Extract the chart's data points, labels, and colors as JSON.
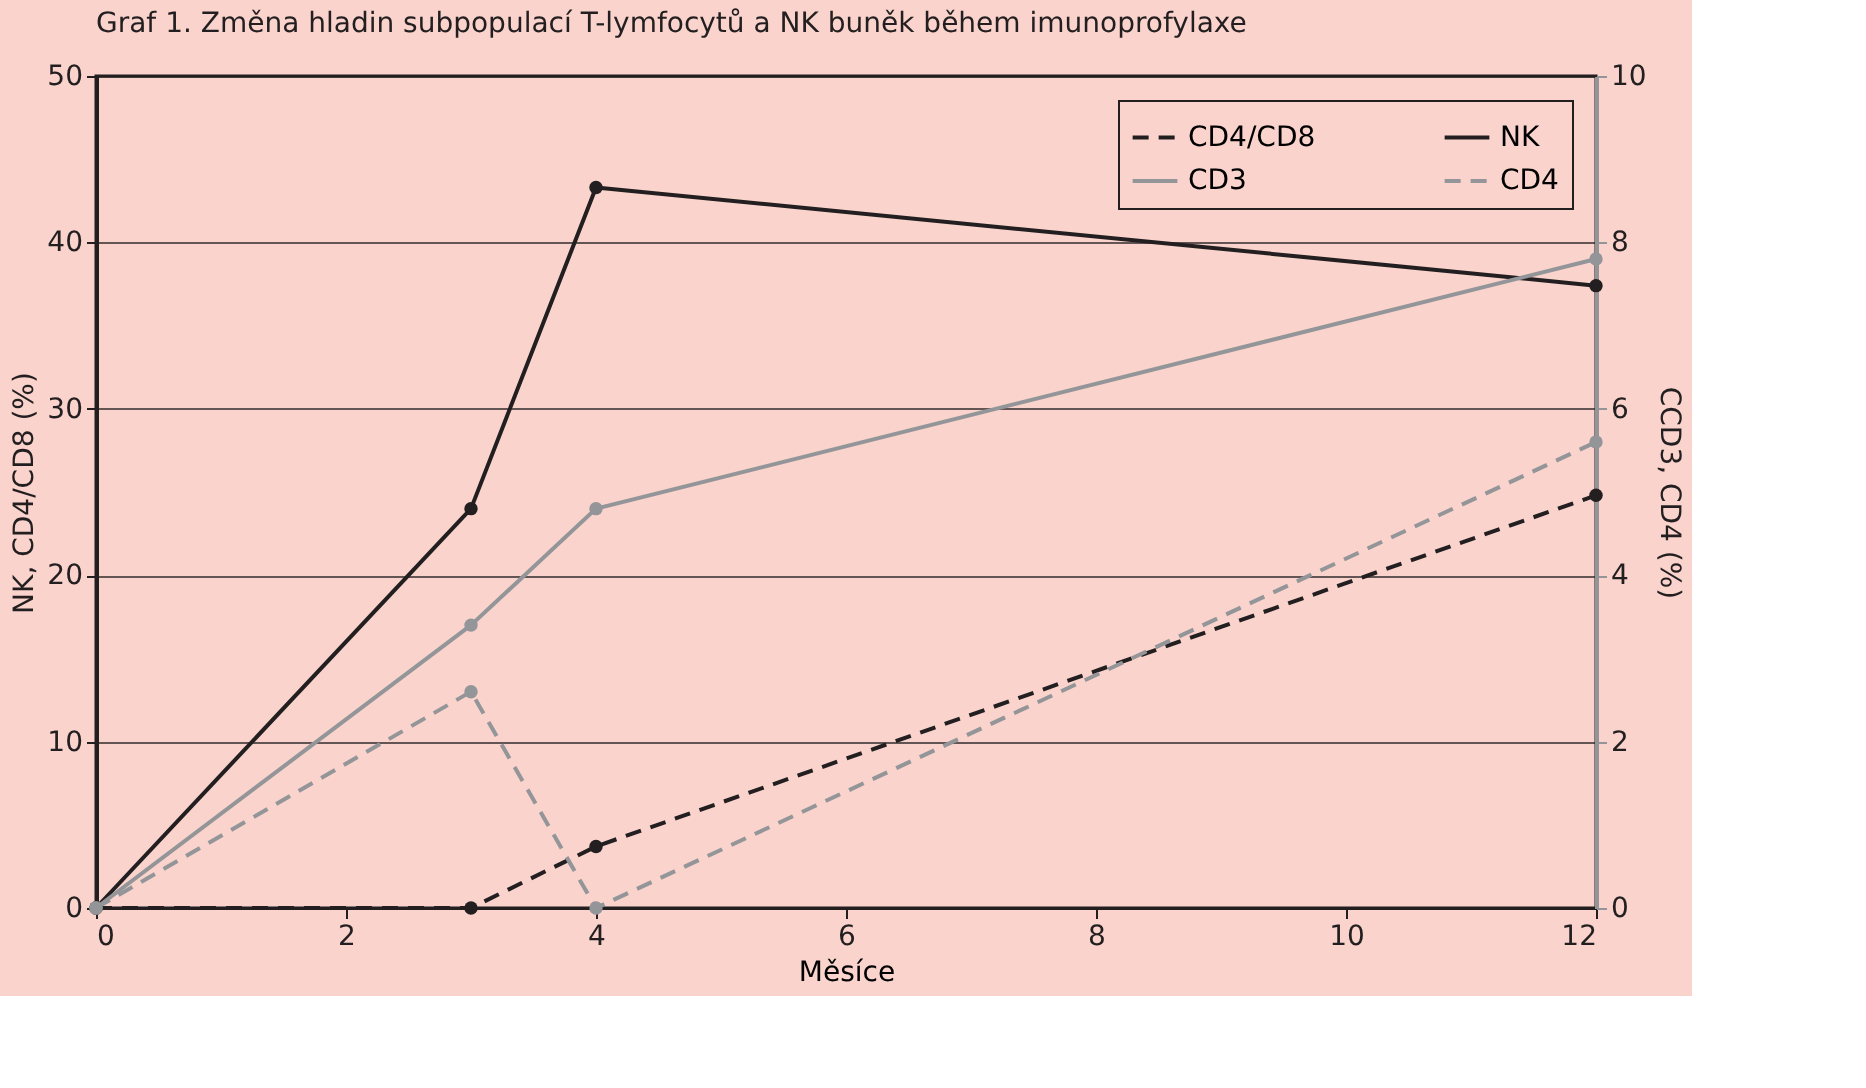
{
  "chart_data": {
    "type": "line",
    "title": "Graf 1. Změna hladin subpopulací T-lymfocytů a NK buněk během imunoprofylaxe",
    "xlabel": "Měsíce",
    "ylabel": "NK, CD4/CD8 (%)",
    "y2label": "CCD3, CD4 (%)",
    "x": [
      0,
      3,
      4,
      12
    ],
    "series": [
      {
        "name": "CD4/CD8",
        "color": "#231f20",
        "line_style": "dashed",
        "values": [
          0,
          0,
          3.7,
          24.8
        ]
      },
      {
        "name": "NK",
        "color": "#231f20",
        "line_style": "solid",
        "values": [
          0,
          24,
          43.3,
          37.4
        ]
      },
      {
        "name": "CD3",
        "color": "#939598",
        "line_style": "solid",
        "axis": "y2",
        "values": [
          0,
          3.4,
          4.8,
          7.8
        ]
      },
      {
        "name": "CD4",
        "color": "#939598",
        "line_style": "dashed",
        "axis": "y2",
        "values": [
          0,
          2.6,
          0,
          5.6
        ]
      }
    ],
    "xlim": [
      0,
      12
    ],
    "xticks": [
      0,
      2,
      4,
      6,
      8,
      10,
      12
    ],
    "ylim": [
      0,
      50
    ],
    "yticks": [
      0,
      10,
      20,
      30,
      40,
      50
    ],
    "y2lim": [
      0,
      10
    ],
    "y2ticks": [
      0,
      2,
      4,
      6,
      8,
      10
    ],
    "grid": "y",
    "legend": "top right",
    "marker": "circle"
  }
}
